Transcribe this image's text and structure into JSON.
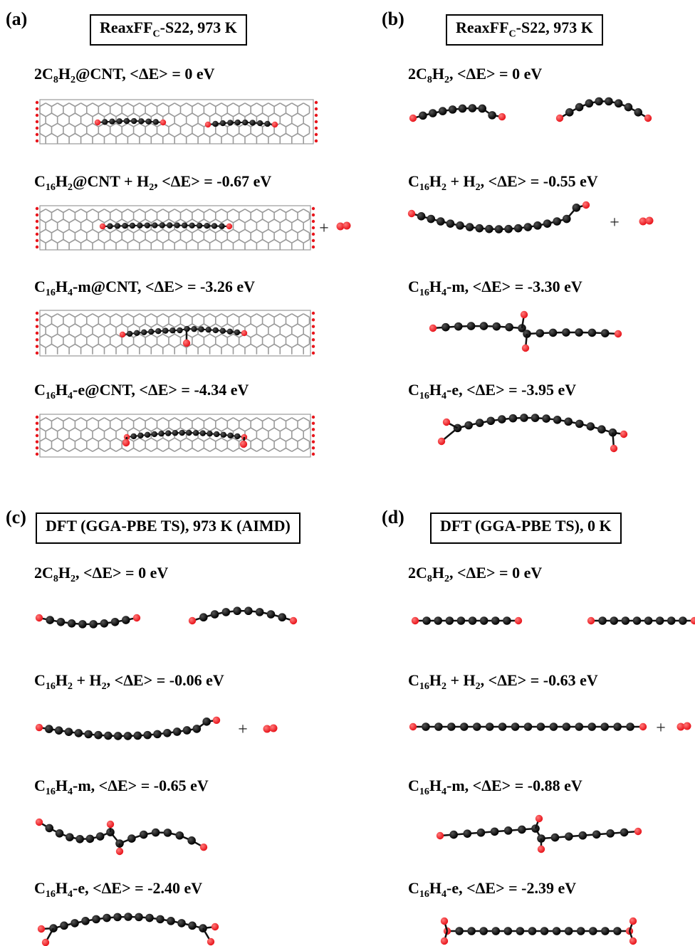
{
  "panels": [
    {
      "letter": "(a)",
      "method": {
        "main": "ReaxFF",
        "sub": "C",
        "rest": "-S22, 973 K"
      },
      "rows": [
        {
          "formula": [
            [
              "2C",
              ""
            ],
            [
              "8",
              "sub"
            ],
            [
              "H",
              ""
            ],
            [
              "2",
              "sub"
            ],
            [
              "@CNT, <ΔE> = 0 eV",
              ""
            ]
          ]
        },
        {
          "formula": [
            [
              "C",
              ""
            ],
            [
              "16",
              "sub"
            ],
            [
              "H",
              ""
            ],
            [
              "2",
              "sub"
            ],
            [
              "@CNT + H",
              ""
            ],
            [
              "2",
              "sub"
            ],
            [
              ", <ΔE> = -0.67 eV",
              ""
            ]
          ]
        },
        {
          "formula": [
            [
              "C",
              ""
            ],
            [
              "16",
              "sub"
            ],
            [
              "H",
              ""
            ],
            [
              "4",
              "sub"
            ],
            [
              "-m@CNT, <ΔE> = -3.26 eV",
              ""
            ]
          ]
        },
        {
          "formula": [
            [
              "C",
              ""
            ],
            [
              "16",
              "sub"
            ],
            [
              "H",
              ""
            ],
            [
              "4",
              "sub"
            ],
            [
              "-e@CNT, <ΔE> = -4.34 eV",
              ""
            ]
          ]
        }
      ]
    },
    {
      "letter": "(b)",
      "method": {
        "main": "ReaxFF",
        "sub": "C",
        "rest": "-S22, 973 K"
      },
      "rows": [
        {
          "formula": [
            [
              "2C",
              ""
            ],
            [
              "8",
              "sub"
            ],
            [
              "H",
              ""
            ],
            [
              "2",
              "sub"
            ],
            [
              ", <ΔE> = 0 eV",
              ""
            ]
          ]
        },
        {
          "formula": [
            [
              "C",
              ""
            ],
            [
              "16",
              "sub"
            ],
            [
              "H",
              ""
            ],
            [
              "2",
              "sub"
            ],
            [
              " + H",
              ""
            ],
            [
              "2",
              "sub"
            ],
            [
              ", <ΔE> = -0.55 eV",
              ""
            ]
          ]
        },
        {
          "formula": [
            [
              "C",
              ""
            ],
            [
              "16",
              "sub"
            ],
            [
              "H",
              ""
            ],
            [
              "4",
              "sub"
            ],
            [
              "-m, <ΔE> = -3.30 eV",
              ""
            ]
          ]
        },
        {
          "formula": [
            [
              "C",
              ""
            ],
            [
              "16",
              "sub"
            ],
            [
              "H",
              ""
            ],
            [
              "4",
              "sub"
            ],
            [
              "-e, <ΔE> = -3.95 eV",
              ""
            ]
          ]
        }
      ]
    },
    {
      "letter": "(c)",
      "method": {
        "main": "DFT (GGA-PBE  TS), 973 K (AIMD)",
        "sub": "",
        "rest": ""
      },
      "rows": [
        {
          "formula": [
            [
              "2C",
              ""
            ],
            [
              "8",
              "sub"
            ],
            [
              "H",
              ""
            ],
            [
              "2",
              "sub"
            ],
            [
              ", <ΔE> = 0 eV",
              ""
            ]
          ]
        },
        {
          "formula": [
            [
              "C",
              ""
            ],
            [
              "16",
              "sub"
            ],
            [
              "H",
              ""
            ],
            [
              "2",
              "sub"
            ],
            [
              " + H",
              ""
            ],
            [
              "2",
              "sub"
            ],
            [
              ", <ΔE> = -0.06 eV",
              ""
            ]
          ]
        },
        {
          "formula": [
            [
              "C",
              ""
            ],
            [
              "16",
              "sub"
            ],
            [
              "H",
              ""
            ],
            [
              "4",
              "sub"
            ],
            [
              "-m, <ΔE> = -0.65 eV",
              ""
            ]
          ]
        },
        {
          "formula": [
            [
              "C",
              ""
            ],
            [
              "16",
              "sub"
            ],
            [
              "H",
              ""
            ],
            [
              "4",
              "sub"
            ],
            [
              "-e, <ΔE> = -2.40 eV",
              ""
            ]
          ]
        }
      ]
    },
    {
      "letter": "(d)",
      "method": {
        "main": "DFT (GGA-PBE  TS), 0 K",
        "sub": "",
        "rest": ""
      },
      "rows": [
        {
          "formula": [
            [
              "2C",
              ""
            ],
            [
              "8",
              "sub"
            ],
            [
              "H",
              ""
            ],
            [
              "2",
              "sub"
            ],
            [
              ", <ΔE> = 0 eV",
              ""
            ]
          ]
        },
        {
          "formula": [
            [
              "C",
              ""
            ],
            [
              "16",
              "sub"
            ],
            [
              "H",
              ""
            ],
            [
              "2",
              "sub"
            ],
            [
              " + H",
              ""
            ],
            [
              "2",
              "sub"
            ],
            [
              ", <ΔE> = -0.63 eV",
              ""
            ]
          ]
        },
        {
          "formula": [
            [
              "C",
              ""
            ],
            [
              "16",
              "sub"
            ],
            [
              "H",
              ""
            ],
            [
              "4",
              "sub"
            ],
            [
              "-m, <ΔE> = -0.88 eV",
              ""
            ]
          ]
        },
        {
          "formula": [
            [
              "C",
              ""
            ],
            [
              "16",
              "sub"
            ],
            [
              "H",
              ""
            ],
            [
              "4",
              "sub"
            ],
            [
              "-e, <ΔE> = -2.39 eV",
              ""
            ]
          ]
        }
      ]
    }
  ],
  "plus_sign": "+",
  "colors": {
    "carbon": "#000000",
    "hydrogen": "#e8141b",
    "nanotube": "#9a9a9a"
  }
}
